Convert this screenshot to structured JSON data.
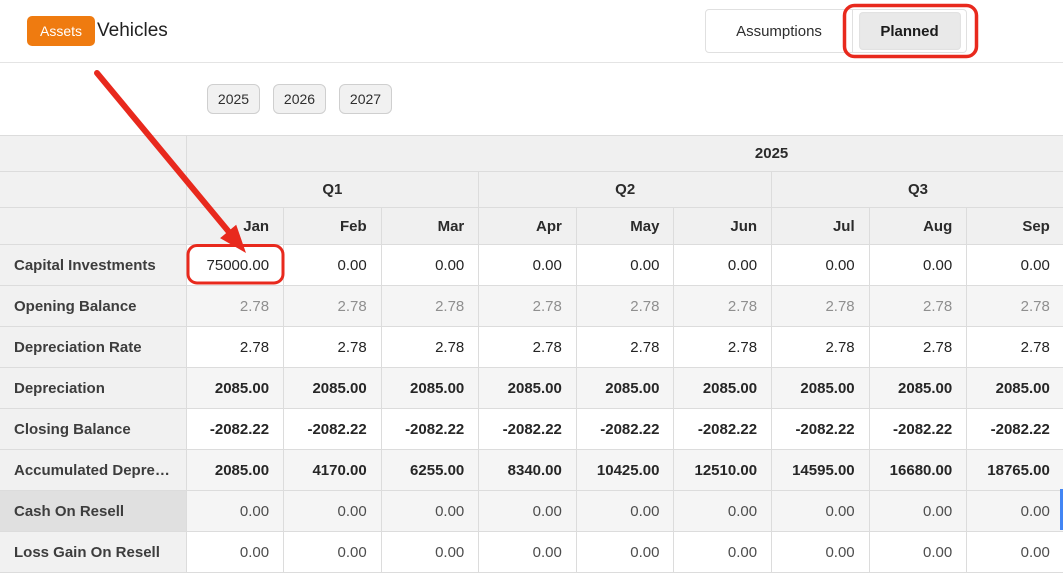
{
  "header": {
    "badge_label": "Assets",
    "badge_color": "#ef7b10",
    "title": "Vehicles",
    "tabs": [
      {
        "label": "Assumptions",
        "active": false
      },
      {
        "label": "Planned",
        "active": true
      }
    ]
  },
  "year_buttons": [
    "2025",
    "2026",
    "2027"
  ],
  "table": {
    "year_header": "2025",
    "quarter_headers": [
      "Q1",
      "Q2",
      "Q3"
    ],
    "month_headers": [
      "Jan",
      "Feb",
      "Mar",
      "Apr",
      "May",
      "Jun",
      "Jul",
      "Aug",
      "Sep"
    ],
    "rows": [
      {
        "key": "capital-investments",
        "label": "Capital Investments",
        "values": [
          "75000.00",
          "0.00",
          "0.00",
          "0.00",
          "0.00",
          "0.00",
          "0.00",
          "0.00",
          "0.00"
        ]
      },
      {
        "key": "opening-balance",
        "label": "Opening Balance",
        "values": [
          "2.78",
          "2.78",
          "2.78",
          "2.78",
          "2.78",
          "2.78",
          "2.78",
          "2.78",
          "2.78"
        ]
      },
      {
        "key": "depreciation-rate",
        "label": "Depreciation Rate",
        "values": [
          "2.78",
          "2.78",
          "2.78",
          "2.78",
          "2.78",
          "2.78",
          "2.78",
          "2.78",
          "2.78"
        ]
      },
      {
        "key": "depreciation",
        "label": "Depreciation",
        "values": [
          "2085.00",
          "2085.00",
          "2085.00",
          "2085.00",
          "2085.00",
          "2085.00",
          "2085.00",
          "2085.00",
          "2085.00"
        ]
      },
      {
        "key": "closing-balance",
        "label": "Closing Balance",
        "values": [
          "-2082.22",
          "-2082.22",
          "-2082.22",
          "-2082.22",
          "-2082.22",
          "-2082.22",
          "-2082.22",
          "-2082.22",
          "-2082.22"
        ]
      },
      {
        "key": "accumulated-depreciation",
        "label": "Accumulated Depreciation",
        "values": [
          "2085.00",
          "4170.00",
          "6255.00",
          "8340.00",
          "10425.00",
          "12510.00",
          "14595.00",
          "16680.00",
          "18765.00"
        ]
      },
      {
        "key": "cash-on-resell",
        "label": "Cash On Resell",
        "values": [
          "0.00",
          "0.00",
          "0.00",
          "0.00",
          "0.00",
          "0.00",
          "0.00",
          "0.00",
          "0.00"
        ]
      },
      {
        "key": "loss-gain-on-resell",
        "label": "Loss Gain On Resell",
        "values": [
          "0.00",
          "0.00",
          "0.00",
          "0.00",
          "0.00",
          "0.00",
          "0.00",
          "0.00",
          "0.00"
        ]
      }
    ]
  },
  "annotations": {
    "color": "#e8291d",
    "highlighted_tab": "Planned",
    "highlighted_cell": {
      "row": "Capital Investments",
      "month": "Jan",
      "value": "75000.00"
    },
    "focus_indicator_color": "#4285f4"
  }
}
